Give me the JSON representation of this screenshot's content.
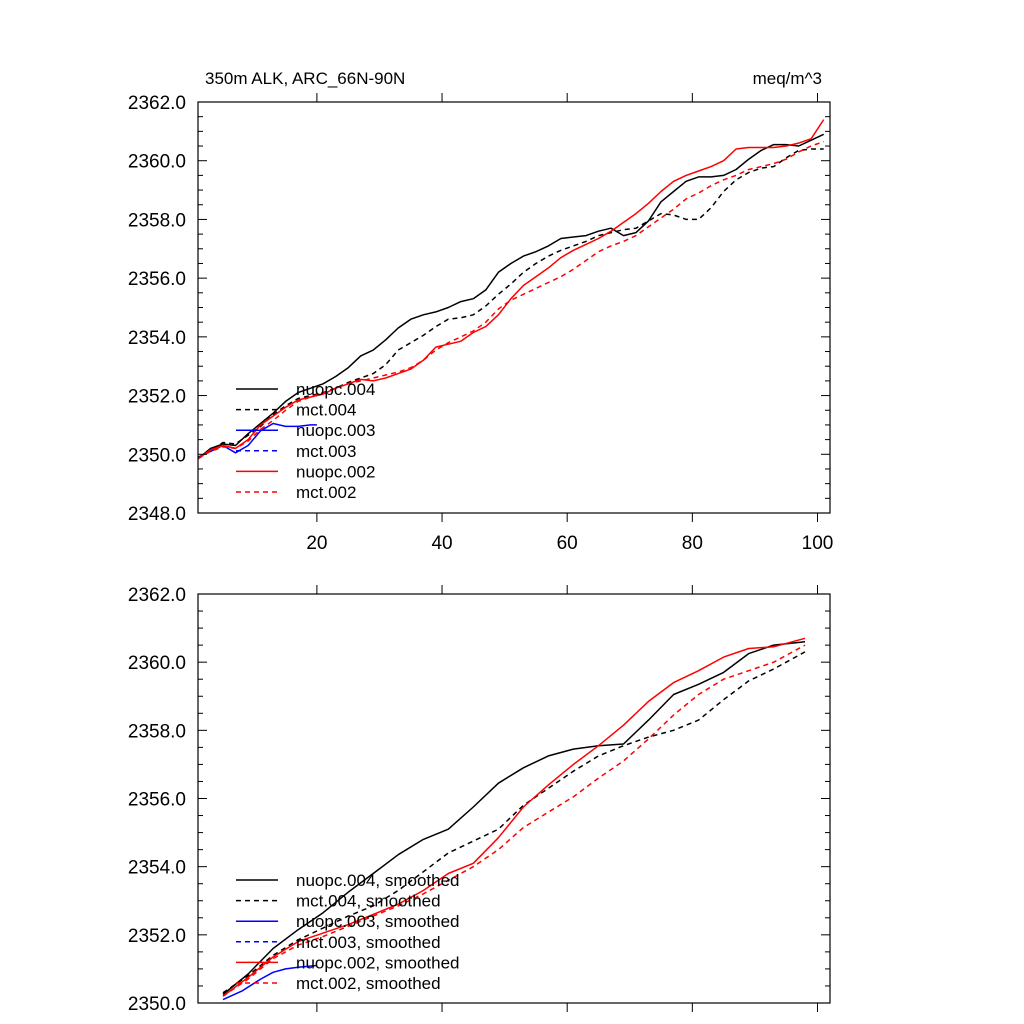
{
  "chart_data": [
    {
      "type": "line",
      "title": "350m ALK, ARC_66N-90N",
      "units_label": "meq/m^3",
      "xlim": [
        1,
        102
      ],
      "ylim": [
        2348,
        2362
      ],
      "xticks": [
        20,
        40,
        60,
        80,
        100
      ],
      "xtick_labels": [
        "20",
        "40",
        "60",
        "80",
        "100"
      ],
      "yticks": [
        2348,
        2350,
        2352,
        2354,
        2356,
        2358,
        2360,
        2362
      ],
      "ytick_labels": [
        "2348.0",
        "2350.0",
        "2352.0",
        "2354.0",
        "2356.0",
        "2358.0",
        "2360.0",
        "2362.0"
      ],
      "legend_position": "bottom-left",
      "series": [
        {
          "name": "nuopc.004",
          "color": "#000000",
          "dash": "solid",
          "x": [
            1,
            3,
            5,
            7,
            9,
            11,
            13,
            15,
            17,
            19,
            21,
            23,
            25,
            27,
            29,
            31,
            33,
            35,
            37,
            39,
            41,
            43,
            45,
            47,
            49,
            51,
            53,
            55,
            57,
            59,
            61,
            63,
            65,
            67,
            69,
            71,
            73,
            75,
            77,
            79,
            81,
            83,
            85,
            87,
            89,
            91,
            93,
            95,
            97,
            99,
            101
          ],
          "y": [
            2349.85,
            2350.2,
            2350.35,
            2350.3,
            2350.7,
            2351.05,
            2351.4,
            2351.8,
            2352.1,
            2352.25,
            2352.4,
            2352.65,
            2352.95,
            2353.35,
            2353.55,
            2353.9,
            2354.3,
            2354.6,
            2354.75,
            2354.85,
            2355.0,
            2355.2,
            2355.3,
            2355.6,
            2356.2,
            2356.5,
            2356.75,
            2356.9,
            2357.1,
            2357.35,
            2357.4,
            2357.45,
            2357.6,
            2357.7,
            2357.45,
            2357.55,
            2357.95,
            2358.6,
            2358.95,
            2359.3,
            2359.45,
            2359.45,
            2359.5,
            2359.7,
            2360.05,
            2360.35,
            2360.55,
            2360.55,
            2360.5,
            2360.7,
            2360.9
          ]
        },
        {
          "name": "mct.004",
          "color": "#000000",
          "dash": "dashed",
          "x": [
            1,
            3,
            5,
            7,
            9,
            11,
            13,
            15,
            17,
            19,
            21,
            23,
            25,
            27,
            29,
            31,
            33,
            35,
            37,
            39,
            41,
            43,
            45,
            47,
            49,
            51,
            53,
            55,
            57,
            59,
            61,
            63,
            65,
            67,
            69,
            71,
            73,
            75,
            77,
            79,
            81,
            83,
            85,
            87,
            89,
            91,
            93,
            95,
            97,
            99,
            101
          ],
          "y": [
            2349.85,
            2350.15,
            2350.4,
            2350.35,
            2350.65,
            2350.95,
            2351.35,
            2351.65,
            2351.9,
            2352.0,
            2352.1,
            2352.25,
            2352.45,
            2352.6,
            2352.75,
            2353.05,
            2353.55,
            2353.8,
            2354.05,
            2354.35,
            2354.6,
            2354.65,
            2354.75,
            2355.05,
            2355.45,
            2355.8,
            2356.2,
            2356.5,
            2356.75,
            2356.95,
            2357.1,
            2357.25,
            2357.45,
            2357.55,
            2357.65,
            2357.7,
            2357.95,
            2358.2,
            2358.15,
            2358.0,
            2358.0,
            2358.4,
            2358.95,
            2359.35,
            2359.6,
            2359.75,
            2359.8,
            2360.1,
            2360.35,
            2360.4,
            2360.4
          ]
        },
        {
          "name": "nuopc.003",
          "color": "#0000ff",
          "dash": "solid",
          "x": [
            1,
            3,
            5,
            7,
            9,
            11,
            13,
            15,
            17,
            19,
            20
          ],
          "y": [
            2349.9,
            2350.1,
            2350.3,
            2350.05,
            2350.3,
            2350.8,
            2351.05,
            2350.95,
            2350.95,
            2351.0,
            2351.0
          ]
        },
        {
          "name": "mct.003",
          "color": "#0000ff",
          "dash": "dashed",
          "x": [],
          "y": []
        },
        {
          "name": "nuopc.002",
          "color": "#ff0000",
          "dash": "solid",
          "x": [
            1,
            3,
            5,
            7,
            9,
            11,
            13,
            15,
            17,
            19,
            21,
            23,
            25,
            27,
            29,
            31,
            33,
            35,
            37,
            39,
            41,
            43,
            45,
            47,
            49,
            51,
            53,
            55,
            57,
            59,
            61,
            63,
            65,
            67,
            69,
            71,
            73,
            75,
            77,
            79,
            81,
            83,
            85,
            87,
            89,
            91,
            93,
            95,
            97,
            99,
            101
          ],
          "y": [
            2349.85,
            2350.15,
            2350.3,
            2350.2,
            2350.5,
            2351.0,
            2351.3,
            2351.6,
            2351.85,
            2351.95,
            2352.05,
            2352.25,
            2352.4,
            2352.55,
            2352.5,
            2352.6,
            2352.75,
            2352.9,
            2353.2,
            2353.65,
            2353.75,
            2353.85,
            2354.15,
            2354.35,
            2354.75,
            2355.3,
            2355.75,
            2356.05,
            2356.35,
            2356.7,
            2356.95,
            2357.15,
            2357.35,
            2357.6,
            2357.9,
            2358.2,
            2358.55,
            2358.95,
            2359.3,
            2359.5,
            2359.65,
            2359.8,
            2360.0,
            2360.4,
            2360.45,
            2360.45,
            2360.45,
            2360.5,
            2360.6,
            2360.75,
            2361.4
          ]
        },
        {
          "name": "mct.002",
          "color": "#ff0000",
          "dash": "dashed",
          "x": [
            1,
            3,
            5,
            7,
            9,
            11,
            13,
            15,
            17,
            19,
            21,
            23,
            25,
            27,
            29,
            31,
            33,
            35,
            37,
            39,
            41,
            43,
            45,
            47,
            49,
            51,
            53,
            55,
            57,
            59,
            61,
            63,
            65,
            67,
            69,
            71,
            73,
            75,
            77,
            79,
            81,
            83,
            85,
            87,
            89,
            91,
            93,
            95,
            97,
            99,
            101
          ],
          "y": [
            2349.85,
            2350.1,
            2350.25,
            2350.2,
            2350.45,
            2350.85,
            2351.15,
            2351.5,
            2351.8,
            2351.95,
            2352.1,
            2352.25,
            2352.4,
            2352.5,
            2352.6,
            2352.7,
            2352.8,
            2352.95,
            2353.2,
            2353.55,
            2353.8,
            2354.0,
            2354.2,
            2354.5,
            2354.95,
            2355.25,
            2355.45,
            2355.65,
            2355.85,
            2356.05,
            2356.3,
            2356.6,
            2356.9,
            2357.1,
            2357.25,
            2357.45,
            2357.75,
            2358.05,
            2358.35,
            2358.7,
            2358.9,
            2359.15,
            2359.35,
            2359.5,
            2359.7,
            2359.8,
            2359.9,
            2360.05,
            2360.3,
            2360.5,
            2360.65
          ]
        }
      ]
    },
    {
      "type": "line",
      "xlim": [
        1,
        102
      ],
      "ylim": [
        2350,
        2362
      ],
      "xticks": [
        20,
        40,
        60,
        80,
        100
      ],
      "yticks": [
        2350,
        2352,
        2354,
        2356,
        2358,
        2360,
        2362
      ],
      "ytick_labels": [
        "2350.0",
        "2352.0",
        "2354.0",
        "2356.0",
        "2358.0",
        "2360.0",
        "2362.0"
      ],
      "legend_position": "bottom-left",
      "series": [
        {
          "name": "nuopc.004, smoothed",
          "color": "#000000",
          "dash": "solid",
          "x": [
            5,
            9,
            13,
            17,
            21,
            25,
            29,
            33,
            37,
            41,
            45,
            49,
            53,
            57,
            61,
            65,
            69,
            73,
            77,
            81,
            85,
            89,
            93,
            98
          ],
          "y": [
            2350.25,
            2350.85,
            2351.6,
            2352.15,
            2352.65,
            2353.25,
            2353.8,
            2354.35,
            2354.8,
            2355.1,
            2355.75,
            2356.45,
            2356.9,
            2357.25,
            2357.45,
            2357.55,
            2357.6,
            2358.3,
            2359.05,
            2359.35,
            2359.7,
            2360.25,
            2360.5,
            2360.6
          ]
        },
        {
          "name": "mct.004, smoothed",
          "color": "#000000",
          "dash": "dashed",
          "x": [
            5,
            9,
            13,
            17,
            21,
            25,
            29,
            33,
            37,
            41,
            45,
            49,
            53,
            57,
            61,
            65,
            69,
            73,
            77,
            81,
            85,
            89,
            93,
            98
          ],
          "y": [
            2350.3,
            2350.8,
            2351.4,
            2351.85,
            2352.2,
            2352.55,
            2352.85,
            2353.3,
            2353.85,
            2354.4,
            2354.75,
            2355.1,
            2355.8,
            2356.3,
            2356.8,
            2357.25,
            2357.55,
            2357.8,
            2358.0,
            2358.3,
            2358.9,
            2359.45,
            2359.8,
            2360.3
          ]
        },
        {
          "name": "nuopc.003, smoothed",
          "color": "#0000ff",
          "dash": "solid",
          "x": [
            5,
            8,
            11,
            13,
            15,
            17,
            20
          ],
          "y": [
            2350.1,
            2350.35,
            2350.7,
            2350.9,
            2351.0,
            2351.05,
            2351.1
          ]
        },
        {
          "name": "mct.003, smoothed",
          "color": "#0000ff",
          "dash": "dashed",
          "x": [],
          "y": []
        },
        {
          "name": "nuopc.002, smoothed",
          "color": "#ff0000",
          "dash": "solid",
          "x": [
            5,
            9,
            13,
            17,
            21,
            25,
            29,
            33,
            37,
            41,
            45,
            49,
            53,
            57,
            61,
            65,
            69,
            73,
            77,
            81,
            85,
            89,
            93,
            98
          ],
          "y": [
            2350.2,
            2350.75,
            2351.35,
            2351.8,
            2352.05,
            2352.3,
            2352.6,
            2352.9,
            2353.3,
            2353.8,
            2354.1,
            2354.85,
            2355.75,
            2356.4,
            2357.0,
            2357.55,
            2358.15,
            2358.85,
            2359.4,
            2359.75,
            2360.15,
            2360.4,
            2360.45,
            2360.7
          ]
        },
        {
          "name": "mct.002, smoothed",
          "color": "#ff0000",
          "dash": "dashed",
          "x": [
            5,
            9,
            13,
            17,
            21,
            25,
            29,
            33,
            37,
            41,
            45,
            49,
            53,
            57,
            61,
            65,
            69,
            73,
            77,
            81,
            85,
            89,
            93,
            98
          ],
          "y": [
            2350.2,
            2350.7,
            2351.3,
            2351.7,
            2351.95,
            2352.25,
            2352.55,
            2352.85,
            2353.2,
            2353.6,
            2354.0,
            2354.5,
            2355.15,
            2355.6,
            2356.05,
            2356.6,
            2357.1,
            2357.75,
            2358.45,
            2359.05,
            2359.5,
            2359.75,
            2360.0,
            2360.5
          ]
        }
      ]
    }
  ]
}
